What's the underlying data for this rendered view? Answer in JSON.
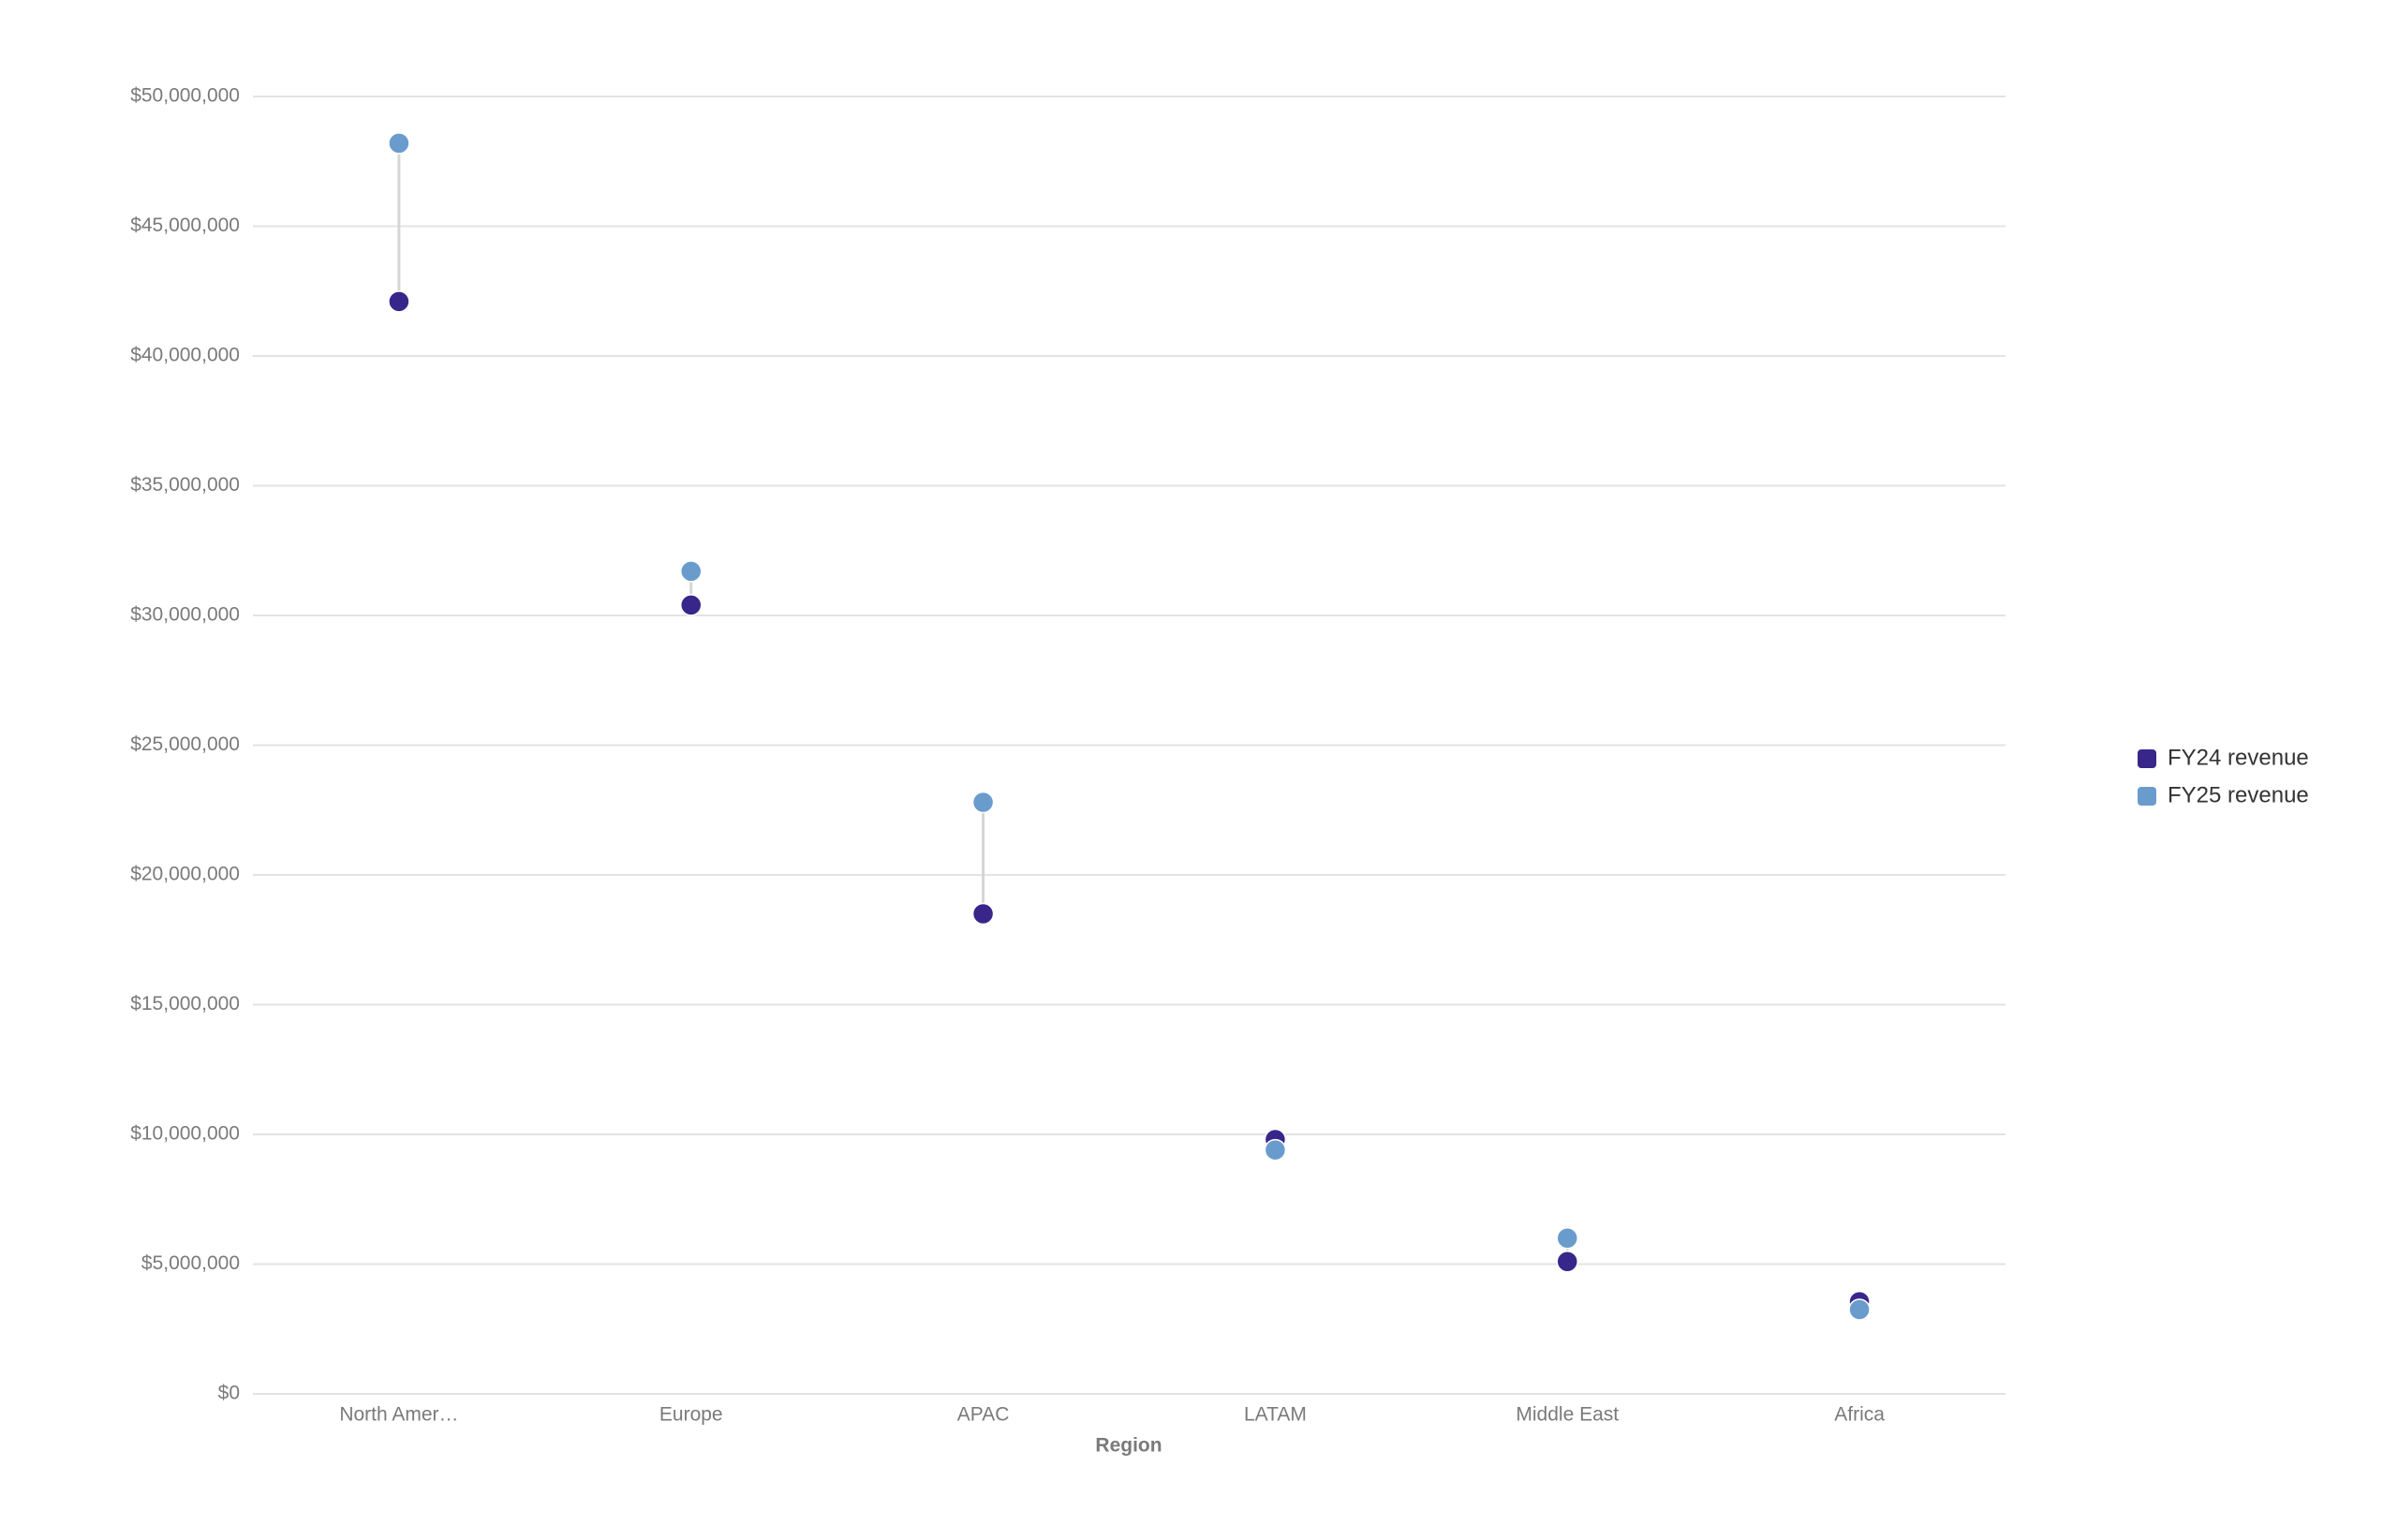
{
  "chart_data": {
    "type": "dumbbell",
    "x_label": "Region",
    "categories": [
      "North Amer…",
      "Europe",
      "APAC",
      "LATAM",
      "Middle East",
      "Africa"
    ],
    "series": [
      {
        "name": "FY24 revenue",
        "color": "#38268a",
        "values": [
          42100000,
          30400000,
          18500000,
          9800000,
          5100000,
          3550000
        ]
      },
      {
        "name": "FY25 revenue",
        "color": "#6a9bcd",
        "values": [
          48200000,
          31700000,
          22800000,
          9400000,
          6000000,
          3250000
        ]
      }
    ],
    "ylim": [
      0,
      50000000
    ],
    "yticks": [
      {
        "value": 0,
        "label": "$0"
      },
      {
        "value": 5000000,
        "label": "$5,000,000"
      },
      {
        "value": 10000000,
        "label": "$10,000,000"
      },
      {
        "value": 15000000,
        "label": "$15,000,000"
      },
      {
        "value": 20000000,
        "label": "$20,000,000"
      },
      {
        "value": 25000000,
        "label": "$25,000,000"
      },
      {
        "value": 30000000,
        "label": "$30,000,000"
      },
      {
        "value": 35000000,
        "label": "$35,000,000"
      },
      {
        "value": 40000000,
        "label": "$40,000,000"
      },
      {
        "value": 45000000,
        "label": "$45,000,000"
      },
      {
        "value": 50000000,
        "label": "$50,000,000"
      }
    ],
    "grid": true,
    "legend": "right"
  }
}
